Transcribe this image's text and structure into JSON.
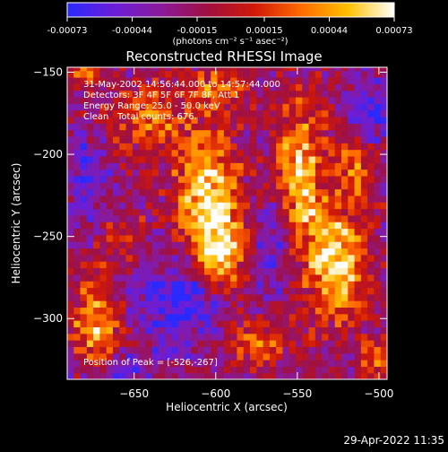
{
  "colorbar": {
    "tick_labels": [
      "-0.00073",
      "-0.00044",
      "-0.00015",
      "0.00015",
      "0.00044",
      "0.00073"
    ],
    "tick_values": [
      -0.00073,
      -0.00044,
      -0.00015,
      0.00015,
      0.00044,
      0.00073
    ],
    "range": [
      -0.00073,
      0.00073
    ],
    "unit_label": "(photons cm⁻² s⁻¹ asec⁻²)",
    "stops": [
      "#2a2aff",
      "#6a1ed8",
      "#8a1a9a",
      "#a01040",
      "#d01808",
      "#ff6a00",
      "#ffc000",
      "#ffffff"
    ]
  },
  "chart_data": {
    "type": "heatmap",
    "title": "Reconstructed RHESSI Image",
    "xlabel": "Heliocentric X (arcsec)",
    "ylabel": "Heliocentric Y (arcsec)",
    "xlim": [
      -691,
      -495
    ],
    "ylim": [
      -337,
      -147
    ],
    "x_ticks": [
      -650,
      -600,
      -550,
      -500
    ],
    "y_ticks": [
      -150,
      -200,
      -250,
      -300
    ],
    "x_tick_labels": [
      "−650",
      "−600",
      "−550",
      "−500"
    ],
    "y_tick_labels": [
      "−150",
      "−200",
      "−250",
      "−300"
    ],
    "grid": false,
    "sources": [
      {
        "x": -605,
        "y": -228,
        "amp": 0.95,
        "sx": 13,
        "sy": 30
      },
      {
        "x": -595,
        "y": -262,
        "amp": 0.65,
        "sx": 10,
        "sy": 18
      },
      {
        "x": -548,
        "y": -212,
        "amp": 0.85,
        "sx": 10,
        "sy": 32
      },
      {
        "x": -526,
        "y": -267,
        "amp": 1.0,
        "sx": 12,
        "sy": 22
      },
      {
        "x": -515,
        "y": -205,
        "amp": 0.55,
        "sx": 8,
        "sy": 20
      },
      {
        "x": -673,
        "y": -308,
        "amp": 0.8,
        "sx": 10,
        "sy": 22
      },
      {
        "x": -640,
        "y": -180,
        "amp": 0.55,
        "sx": 14,
        "sy": 14
      },
      {
        "x": -598,
        "y": -160,
        "amp": 0.5,
        "sx": 12,
        "sy": 9
      },
      {
        "x": -680,
        "y": -150,
        "amp": 0.7,
        "sx": 6,
        "sy": 6
      },
      {
        "x": -575,
        "y": -315,
        "amp": 0.5,
        "sx": 14,
        "sy": 10
      },
      {
        "x": -500,
        "y": -325,
        "amp": 0.5,
        "sx": 8,
        "sy": 10
      },
      {
        "x": -660,
        "y": -250,
        "amp": 0.3,
        "sx": 12,
        "sy": 12
      }
    ],
    "negative_zones": [
      {
        "x": -620,
        "y": -290,
        "amp": 0.6,
        "sx": 20,
        "sy": 20
      },
      {
        "x": -565,
        "y": -255,
        "amp": 0.45,
        "sx": 8,
        "sy": 18
      },
      {
        "x": -505,
        "y": -175,
        "amp": 0.5,
        "sx": 12,
        "sy": 15
      },
      {
        "x": -665,
        "y": -330,
        "amp": 0.5,
        "sx": 15,
        "sy": 8
      },
      {
        "x": -680,
        "y": -215,
        "amp": 0.45,
        "sx": 8,
        "sy": 20
      }
    ],
    "peak": {
      "x": -526,
      "y": -267
    }
  },
  "annotations": {
    "time_range": "31-May-2002 14:56:44.000 to 14:57:44.000",
    "detectors": "Detectors: 3F 4F 5F 6F 7F 8F, Att 1",
    "energy_range": "Energy Range: 25.0 - 50.0 keV",
    "method": "Clean",
    "total_counts": "Total counts: 676.",
    "peak_position": "Position of Peak = [-526,-267]"
  },
  "footer": {
    "timestamp": "29-Apr-2022 11:35"
  }
}
